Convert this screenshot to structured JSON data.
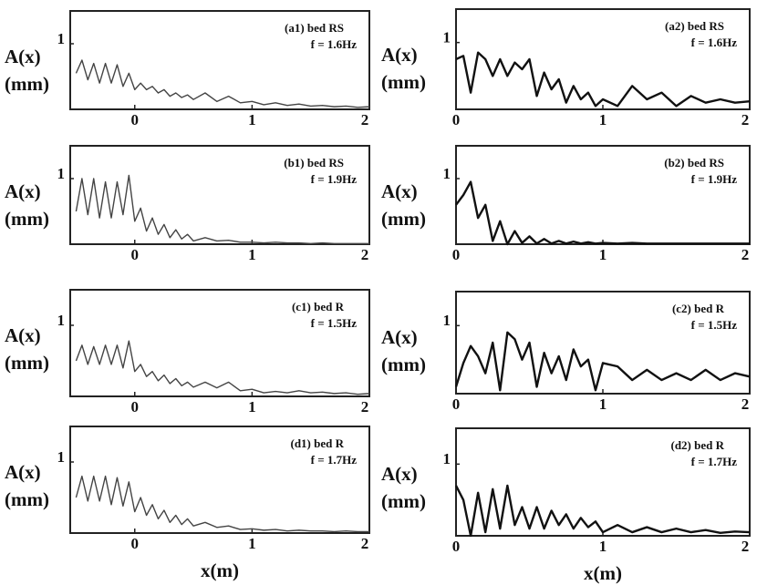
{
  "chart_data": [
    {
      "type": "line",
      "title": "(a1) bed RS",
      "subtitle": "f = 1.6Hz",
      "ylabel": "A(x)",
      "yunit": "(mm)",
      "color": "#444",
      "x": [
        -0.5,
        -0.45,
        -0.4,
        -0.35,
        -0.3,
        -0.25,
        -0.2,
        -0.15,
        -0.1,
        -0.05,
        0,
        0.05,
        0.1,
        0.15,
        0.2,
        0.25,
        0.3,
        0.35,
        0.4,
        0.45,
        0.5,
        0.6,
        0.7,
        0.8,
        0.9,
        1.0,
        1.1,
        1.2,
        1.3,
        1.4,
        1.5,
        1.6,
        1.7,
        1.8,
        1.9,
        2.0
      ],
      "values": [
        0.55,
        0.75,
        0.45,
        0.7,
        0.4,
        0.7,
        0.4,
        0.68,
        0.35,
        0.55,
        0.3,
        0.4,
        0.3,
        0.35,
        0.25,
        0.3,
        0.2,
        0.25,
        0.18,
        0.22,
        0.15,
        0.25,
        0.12,
        0.2,
        0.1,
        0.12,
        0.07,
        0.1,
        0.06,
        0.08,
        0.05,
        0.06,
        0.04,
        0.05,
        0.03,
        0.04
      ],
      "xlim": [
        -0.55,
        2
      ],
      "ylim": [
        0,
        1.5
      ],
      "xticks": [
        0,
        1,
        2
      ],
      "yticks": [
        1
      ]
    },
    {
      "type": "line",
      "title": "(b1) bed RS",
      "subtitle": "f = 1.9Hz",
      "ylabel": "A(x)",
      "yunit": "(mm)",
      "color": "#444",
      "x": [
        -0.5,
        -0.45,
        -0.4,
        -0.35,
        -0.3,
        -0.25,
        -0.2,
        -0.15,
        -0.1,
        -0.05,
        0,
        0.05,
        0.1,
        0.15,
        0.2,
        0.25,
        0.3,
        0.35,
        0.4,
        0.45,
        0.5,
        0.6,
        0.7,
        0.8,
        0.9,
        1.0,
        1.1,
        1.2,
        1.3,
        1.4,
        1.5,
        1.6,
        1.7,
        1.8,
        1.9,
        2.0
      ],
      "values": [
        0.5,
        1.0,
        0.45,
        1.0,
        0.4,
        0.95,
        0.4,
        0.95,
        0.45,
        1.05,
        0.35,
        0.55,
        0.2,
        0.4,
        0.15,
        0.3,
        0.1,
        0.22,
        0.08,
        0.15,
        0.05,
        0.1,
        0.05,
        0.06,
        0.03,
        0.03,
        0.02,
        0.03,
        0.02,
        0.02,
        0.01,
        0.02,
        0.01,
        0.01,
        0.01,
        0.01
      ],
      "xlim": [
        -0.55,
        2
      ],
      "ylim": [
        0,
        1.5
      ],
      "xticks": [
        0,
        1,
        2
      ],
      "yticks": [
        1
      ]
    },
    {
      "type": "line",
      "title": "(c1) bed R",
      "subtitle": "f = 1.5Hz",
      "ylabel": "A(x)",
      "yunit": "(mm)",
      "color": "#444",
      "x": [
        -0.5,
        -0.45,
        -0.4,
        -0.35,
        -0.3,
        -0.25,
        -0.2,
        -0.15,
        -0.1,
        -0.05,
        0,
        0.05,
        0.1,
        0.15,
        0.2,
        0.25,
        0.3,
        0.35,
        0.4,
        0.45,
        0.5,
        0.6,
        0.7,
        0.8,
        0.9,
        1.0,
        1.1,
        1.2,
        1.3,
        1.4,
        1.5,
        1.6,
        1.7,
        1.8,
        1.9,
        2.0
      ],
      "values": [
        0.5,
        0.72,
        0.45,
        0.7,
        0.45,
        0.72,
        0.45,
        0.72,
        0.4,
        0.78,
        0.35,
        0.45,
        0.28,
        0.35,
        0.22,
        0.3,
        0.18,
        0.25,
        0.15,
        0.2,
        0.13,
        0.2,
        0.12,
        0.2,
        0.08,
        0.1,
        0.05,
        0.07,
        0.05,
        0.08,
        0.05,
        0.06,
        0.04,
        0.05,
        0.03,
        0.04
      ],
      "xlim": [
        -0.55,
        2
      ],
      "ylim": [
        0,
        1.5
      ],
      "xticks": [
        0,
        1,
        2
      ],
      "yticks": [
        1
      ]
    },
    {
      "type": "line",
      "title": "(d1) bed R",
      "subtitle": "f = 1.7Hz",
      "ylabel": "A(x)",
      "yunit": "(mm)",
      "xlabel": "x(m)",
      "color": "#444",
      "x": [
        -0.5,
        -0.45,
        -0.4,
        -0.35,
        -0.3,
        -0.25,
        -0.2,
        -0.15,
        -0.1,
        -0.05,
        0,
        0.05,
        0.1,
        0.15,
        0.2,
        0.25,
        0.3,
        0.35,
        0.4,
        0.45,
        0.5,
        0.6,
        0.7,
        0.8,
        0.9,
        1.0,
        1.1,
        1.2,
        1.3,
        1.4,
        1.5,
        1.6,
        1.7,
        1.8,
        1.9,
        2.0
      ],
      "values": [
        0.5,
        0.8,
        0.45,
        0.8,
        0.45,
        0.8,
        0.4,
        0.78,
        0.38,
        0.72,
        0.3,
        0.5,
        0.25,
        0.4,
        0.2,
        0.32,
        0.15,
        0.25,
        0.12,
        0.2,
        0.1,
        0.15,
        0.08,
        0.1,
        0.05,
        0.06,
        0.04,
        0.05,
        0.03,
        0.04,
        0.03,
        0.03,
        0.02,
        0.03,
        0.02,
        0.02
      ],
      "xlim": [
        -0.55,
        2
      ],
      "ylim": [
        0,
        1.5
      ],
      "xticks": [
        0,
        1,
        2
      ],
      "yticks": [
        1
      ]
    },
    {
      "type": "line",
      "title": "(a2) bed RS",
      "subtitle": "f = 1.6Hz",
      "ylabel": "A(x)",
      "yunit": "(mm)",
      "color": "#111",
      "x": [
        0,
        0.05,
        0.1,
        0.15,
        0.2,
        0.25,
        0.3,
        0.35,
        0.4,
        0.45,
        0.5,
        0.55,
        0.6,
        0.65,
        0.7,
        0.75,
        0.8,
        0.85,
        0.9,
        0.95,
        1.0,
        1.1,
        1.2,
        1.3,
        1.4,
        1.5,
        1.6,
        1.7,
        1.8,
        1.9,
        2.0
      ],
      "values": [
        0.75,
        0.8,
        0.25,
        0.85,
        0.75,
        0.5,
        0.75,
        0.5,
        0.7,
        0.6,
        0.75,
        0.2,
        0.55,
        0.3,
        0.45,
        0.1,
        0.35,
        0.15,
        0.25,
        0.05,
        0.15,
        0.05,
        0.35,
        0.15,
        0.25,
        0.05,
        0.2,
        0.1,
        0.15,
        0.1,
        0.12
      ],
      "xlim": [
        0,
        2
      ],
      "ylim": [
        0,
        1.5
      ],
      "xticks": [
        0,
        1,
        2
      ],
      "yticks": [
        1
      ]
    },
    {
      "type": "line",
      "title": "(b2) bed RS",
      "subtitle": "f = 1.9Hz",
      "ylabel": "A(x)",
      "yunit": "(mm)",
      "color": "#111",
      "x": [
        0,
        0.05,
        0.1,
        0.15,
        0.2,
        0.25,
        0.3,
        0.35,
        0.4,
        0.45,
        0.5,
        0.55,
        0.6,
        0.65,
        0.7,
        0.75,
        0.8,
        0.85,
        0.9,
        0.95,
        1.0,
        1.1,
        1.2,
        1.3,
        1.4,
        1.5,
        1.6,
        1.7,
        1.8,
        1.9,
        2.0
      ],
      "values": [
        0.6,
        0.75,
        0.95,
        0.4,
        0.6,
        0.05,
        0.35,
        0.0,
        0.2,
        0.02,
        0.12,
        0.01,
        0.08,
        0.01,
        0.05,
        0.01,
        0.04,
        0.01,
        0.03,
        0.01,
        0.02,
        0.01,
        0.02,
        0.01,
        0.01,
        0.01,
        0.01,
        0.01,
        0.01,
        0.01,
        0.01
      ],
      "xlim": [
        0,
        2
      ],
      "ylim": [
        0,
        1.5
      ],
      "xticks": [
        0,
        1,
        2
      ],
      "yticks": [
        1
      ]
    },
    {
      "type": "line",
      "title": "(c2) bed R",
      "subtitle": "f = 1.5Hz",
      "ylabel": "A(x)",
      "yunit": "(mm)",
      "color": "#111",
      "x": [
        0,
        0.05,
        0.1,
        0.15,
        0.2,
        0.25,
        0.3,
        0.35,
        0.4,
        0.45,
        0.5,
        0.55,
        0.6,
        0.65,
        0.7,
        0.75,
        0.8,
        0.85,
        0.9,
        0.95,
        1.0,
        1.1,
        1.2,
        1.3,
        1.4,
        1.5,
        1.6,
        1.7,
        1.8,
        1.9,
        2.0
      ],
      "values": [
        0.1,
        0.45,
        0.7,
        0.55,
        0.3,
        0.75,
        0.05,
        0.9,
        0.8,
        0.5,
        0.75,
        0.1,
        0.6,
        0.3,
        0.55,
        0.2,
        0.65,
        0.4,
        0.5,
        0.05,
        0.45,
        0.4,
        0.2,
        0.35,
        0.2,
        0.3,
        0.2,
        0.35,
        0.2,
        0.3,
        0.25
      ],
      "xlim": [
        0,
        2
      ],
      "ylim": [
        0,
        1.5
      ],
      "xticks": [
        0,
        1,
        2
      ],
      "yticks": [
        1
      ]
    },
    {
      "type": "line",
      "title": "(d2) bed R",
      "subtitle": "f = 1.7Hz",
      "ylabel": "A(x)",
      "yunit": "(mm)",
      "xlabel": "x(m)",
      "color": "#111",
      "x": [
        0,
        0.05,
        0.1,
        0.15,
        0.2,
        0.25,
        0.3,
        0.35,
        0.4,
        0.45,
        0.5,
        0.55,
        0.6,
        0.65,
        0.7,
        0.75,
        0.8,
        0.85,
        0.9,
        0.95,
        1.0,
        1.1,
        1.2,
        1.3,
        1.4,
        1.5,
        1.6,
        1.7,
        1.8,
        1.9,
        2.0
      ],
      "values": [
        0.7,
        0.5,
        0.0,
        0.6,
        0.05,
        0.65,
        0.1,
        0.7,
        0.15,
        0.4,
        0.1,
        0.4,
        0.1,
        0.35,
        0.15,
        0.3,
        0.1,
        0.25,
        0.12,
        0.2,
        0.05,
        0.15,
        0.05,
        0.12,
        0.05,
        0.1,
        0.05,
        0.08,
        0.04,
        0.06,
        0.05
      ],
      "xlim": [
        0,
        2
      ],
      "ylim": [
        0,
        1.5
      ],
      "xticks": [
        0,
        1,
        2
      ],
      "yticks": [
        1
      ]
    }
  ]
}
